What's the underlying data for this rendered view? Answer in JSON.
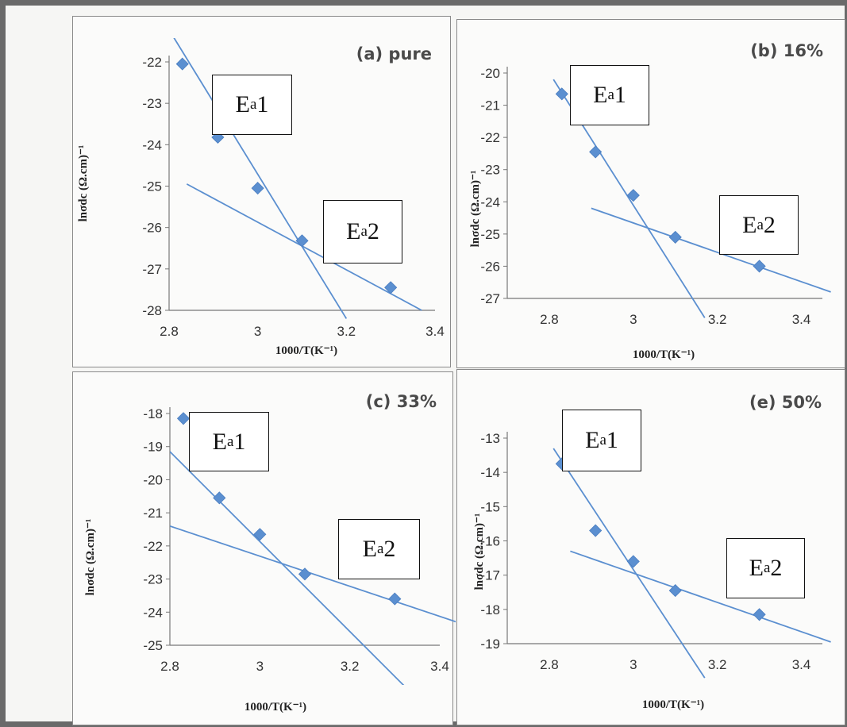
{
  "chart_data": [
    {
      "type": "scatter",
      "title": "(a) pure",
      "xlabel": "1000/T(K⁻¹)",
      "ylabel": "lnσdc (Ω.cm)⁻¹",
      "xlim": [
        2.8,
        3.4
      ],
      "ylim": [
        -28,
        -22
      ],
      "xticks": [
        "2.8",
        "3",
        "3.2",
        "3.4"
      ],
      "yticks": [
        "-22",
        "-23",
        "-24",
        "-25",
        "-26",
        "-27",
        "-28"
      ],
      "points": {
        "x": [
          2.83,
          2.91,
          3.0,
          3.1,
          3.3
        ],
        "y": [
          -22.05,
          -23.82,
          -25.05,
          -26.32,
          -27.45
        ]
      },
      "fits": [
        {
          "label": "Ea1",
          "x": [
            2.81,
            3.2
          ],
          "y": [
            -21.4,
            -28.2
          ]
        },
        {
          "label": "Ea2",
          "x": [
            2.84,
            3.37
          ],
          "y": [
            -24.95,
            -28.0
          ]
        }
      ],
      "annotations": [
        {
          "text": "E",
          "sub": "a",
          "suffix": "1"
        },
        {
          "text": "E",
          "sub": "a",
          "suffix": "2"
        }
      ],
      "color": "#5b8fd0"
    },
    {
      "type": "scatter",
      "title": "(b) 16%",
      "xlabel": "1000/T(K⁻¹)",
      "ylabel": "lnσdc (Ω.cm)⁻¹",
      "xlim": [
        2.7,
        3.45
      ],
      "ylim": [
        -27,
        -20
      ],
      "xticks": [
        "2.8",
        "3",
        "3.2",
        "3.4"
      ],
      "yticks": [
        "-20",
        "-21",
        "-22",
        "-23",
        "-24",
        "-25",
        "-26",
        "-27"
      ],
      "points": {
        "x": [
          2.83,
          2.91,
          3.0,
          3.1,
          3.3
        ],
        "y": [
          -20.65,
          -22.45,
          -23.8,
          -25.1,
          -26.0
        ]
      },
      "fits": [
        {
          "label": "Ea1",
          "x": [
            2.81,
            3.17
          ],
          "y": [
            -20.2,
            -27.6
          ]
        },
        {
          "label": "Ea2",
          "x": [
            2.9,
            3.47
          ],
          "y": [
            -24.2,
            -26.8
          ]
        }
      ],
      "annotations": [
        {
          "text": "E",
          "sub": "a",
          "suffix": "1"
        },
        {
          "text": "E",
          "sub": "a",
          "suffix": "2"
        }
      ],
      "color": "#5b8fd0"
    },
    {
      "type": "scatter",
      "title": "(c) 33%",
      "xlabel": "1000/T(K⁻¹)",
      "ylabel": "lnσdc (Ω.cm)⁻¹",
      "xlim": [
        2.8,
        3.4
      ],
      "ylim": [
        -25,
        -18
      ],
      "xticks": [
        "2.8",
        "3",
        "3.2",
        "3.4"
      ],
      "yticks": [
        "-18",
        "-19",
        "-20",
        "-21",
        "-22",
        "-23",
        "-24",
        "-25"
      ],
      "points": {
        "x": [
          2.83,
          2.91,
          3.0,
          3.1,
          3.3
        ],
        "y": [
          -18.15,
          -20.55,
          -21.65,
          -22.85,
          -23.6
        ]
      },
      "fits": [
        {
          "label": "Ea1",
          "x": [
            2.8,
            3.33
          ],
          "y": [
            -19.15,
            -26.35
          ]
        },
        {
          "label": "Ea2",
          "x": [
            2.8,
            3.46
          ],
          "y": [
            -21.4,
            -24.4
          ]
        }
      ],
      "annotations": [
        {
          "text": "E",
          "sub": "a",
          "suffix": "1"
        },
        {
          "text": "E",
          "sub": "a",
          "suffix": "2"
        }
      ],
      "color": "#5b8fd0"
    },
    {
      "type": "scatter",
      "title": "(e) 50%",
      "xlabel": "1000/T(K⁻¹)",
      "ylabel": "lnσdc (Ω.cm)⁻¹",
      "xlim": [
        2.7,
        3.45
      ],
      "ylim": [
        -19,
        -13
      ],
      "xticks": [
        "2.8",
        "3",
        "3.2",
        "3.4"
      ],
      "yticks": [
        "-13",
        "-14",
        "-15",
        "-16",
        "-17",
        "-18",
        "-19"
      ],
      "points": {
        "x": [
          2.83,
          2.91,
          3.0,
          3.1,
          3.3
        ],
        "y": [
          -13.75,
          -15.7,
          -16.6,
          -17.45,
          -18.15
        ]
      },
      "fits": [
        {
          "label": "Ea1",
          "x": [
            2.81,
            3.17
          ],
          "y": [
            -13.3,
            -20.0
          ]
        },
        {
          "label": "Ea2",
          "x": [
            2.85,
            3.47
          ],
          "y": [
            -16.3,
            -18.95
          ]
        }
      ],
      "annotations": [
        {
          "text": "E",
          "sub": "a",
          "suffix": "1"
        },
        {
          "text": "E",
          "sub": "a",
          "suffix": "2"
        }
      ],
      "color": "#5b8fd0"
    }
  ]
}
